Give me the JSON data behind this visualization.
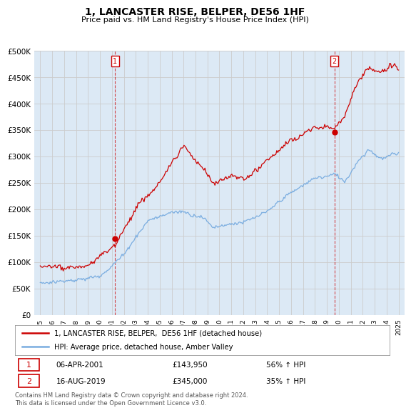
{
  "title": "1, LANCASTER RISE, BELPER, DE56 1HF",
  "subtitle": "Price paid vs. HM Land Registry's House Price Index (HPI)",
  "legend_line1": "1, LANCASTER RISE, BELPER,  DE56 1HF (detached house)",
  "legend_line2": "HPI: Average price, detached house, Amber Valley",
  "annotation1_date": "06-APR-2001",
  "annotation1_price": "£143,950",
  "annotation1_hpi": "56% ↑ HPI",
  "annotation2_date": "16-AUG-2019",
  "annotation2_price": "£345,000",
  "annotation2_hpi": "35% ↑ HPI",
  "footer": "Contains HM Land Registry data © Crown copyright and database right 2024.\nThis data is licensed under the Open Government Licence v3.0.",
  "red_color": "#cc0000",
  "blue_color": "#7aade0",
  "fill_color": "#dce9f5",
  "background_color": "#ffffff",
  "grid_color": "#cccccc",
  "ylim": [
    0,
    500000
  ],
  "yticks": [
    0,
    50000,
    100000,
    150000,
    200000,
    250000,
    300000,
    350000,
    400000,
    450000,
    500000
  ],
  "purchase1_year": 2001.27,
  "purchase1_value": 143950,
  "purchase2_year": 2019.62,
  "purchase2_value": 345000
}
